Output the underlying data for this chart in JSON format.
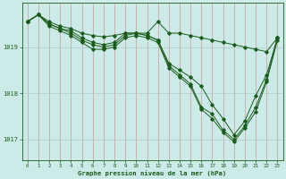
{
  "background_color": "#cceae7",
  "plot_bg_color": "#cceae7",
  "line_color": "#1a5c1a",
  "grid_color_v": "#cc9999",
  "grid_color_h": "#aacccc",
  "xlabel": "Graphe pression niveau de la mer (hPa)",
  "xlabel_color": "#1a5c1a",
  "tick_color": "#1a5c1a",
  "ylim": [
    1016.55,
    1019.95
  ],
  "yticks": [
    1017,
    1018,
    1019
  ],
  "xlim": [
    -0.5,
    23.5
  ],
  "series": [
    [
      1019.55,
      1019.7,
      1019.55,
      1019.45,
      1019.4,
      1019.3,
      1019.25,
      1019.22,
      1019.25,
      1019.3,
      1019.3,
      1019.3,
      1019.55,
      1019.3,
      1019.3,
      1019.25,
      1019.2,
      1019.15,
      1019.1,
      1019.05,
      1019.0,
      1018.95,
      1018.9,
      1019.2
    ],
    [
      1019.55,
      1019.7,
      1019.5,
      1019.4,
      1019.35,
      1019.2,
      1019.1,
      1019.05,
      1019.1,
      1019.3,
      1019.3,
      1019.25,
      1019.15,
      1018.65,
      1018.5,
      1018.35,
      1018.15,
      1017.75,
      1017.45,
      1017.1,
      1017.4,
      1017.95,
      1018.4,
      1019.2
    ],
    [
      1019.55,
      1019.7,
      1019.5,
      1019.4,
      1019.3,
      1019.15,
      1019.05,
      1019.0,
      1019.05,
      1019.25,
      1019.3,
      1019.25,
      1019.15,
      1018.6,
      1018.4,
      1018.2,
      1017.7,
      1017.55,
      1017.2,
      1017.0,
      1017.3,
      1017.7,
      1018.3,
      1019.2
    ],
    [
      1019.55,
      1019.7,
      1019.45,
      1019.35,
      1019.25,
      1019.1,
      1018.95,
      1018.95,
      1019.0,
      1019.2,
      1019.25,
      1019.2,
      1019.1,
      1018.55,
      1018.35,
      1018.15,
      1017.65,
      1017.45,
      1017.15,
      1016.95,
      1017.25,
      1017.6,
      1018.25,
      1019.15
    ]
  ]
}
